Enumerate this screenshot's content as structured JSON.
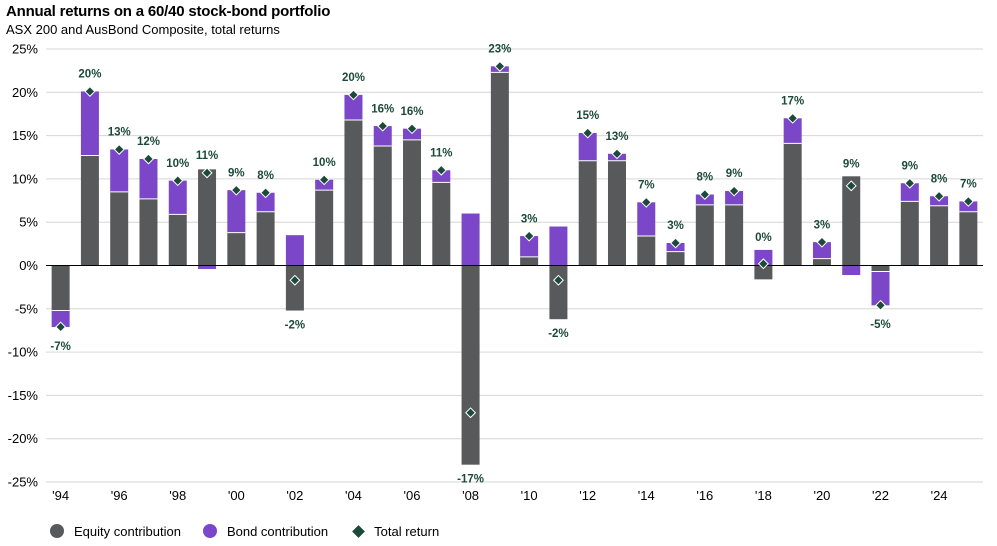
{
  "chart_data": {
    "type": "bar",
    "title": "Annual returns on a 60/40 stock-bond portfolio",
    "subtitle": "ASX 200 and AusBond Composite, total returns",
    "ylim": [
      -25,
      25
    ],
    "yticks": [
      25,
      20,
      15,
      10,
      5,
      0,
      -5,
      -10,
      -15,
      -20,
      -25
    ],
    "ytick_labels": [
      "25%",
      "20%",
      "15%",
      "10%",
      "5%",
      "0%",
      "-5%",
      "-10%",
      "-15%",
      "-20%",
      "-25%"
    ],
    "years": [
      1994,
      1995,
      1996,
      1997,
      1998,
      1999,
      2000,
      2001,
      2002,
      2003,
      2004,
      2005,
      2006,
      2007,
      2008,
      2009,
      2010,
      2011,
      2012,
      2013,
      2014,
      2015,
      2016,
      2017,
      2018,
      2019,
      2020,
      2021,
      2022,
      2023,
      2024,
      2025
    ],
    "xtick_labels": [
      "'94",
      "'96",
      "'98",
      "'00",
      "'02",
      "'04",
      "'06",
      "'08",
      "'10",
      "'12",
      "'14",
      "'16",
      "'18",
      "'20",
      "'22",
      "'24"
    ],
    "xtick_years": [
      1994,
      1996,
      1998,
      2000,
      2002,
      2004,
      2006,
      2008,
      2010,
      2012,
      2014,
      2016,
      2018,
      2020,
      2022,
      2024
    ],
    "series": [
      {
        "name": "Equity contribution",
        "color": "#58595b",
        "values": [
          -5.2,
          12.7,
          8.5,
          7.7,
          5.9,
          11.1,
          3.8,
          6.2,
          -5.2,
          8.7,
          16.8,
          13.8,
          14.5,
          9.6,
          -23.0,
          22.3,
          1.0,
          -6.2,
          12.1,
          12.1,
          3.4,
          1.6,
          7.0,
          7.0,
          -1.6,
          14.1,
          0.8,
          10.3,
          -0.7,
          7.4,
          6.9,
          6.2
        ]
      },
      {
        "name": "Bond contribution",
        "color": "#7b46c8",
        "values": [
          -1.9,
          7.4,
          4.9,
          4.6,
          3.9,
          -0.4,
          4.9,
          2.2,
          3.5,
          1.2,
          2.9,
          2.3,
          1.3,
          1.4,
          6.0,
          0.7,
          2.4,
          4.5,
          3.2,
          0.8,
          3.9,
          1.0,
          1.2,
          1.6,
          1.8,
          2.9,
          1.9,
          -1.1,
          -3.9,
          2.1,
          1.1,
          1.2
        ]
      },
      {
        "name": "Total return",
        "color": "#1c4a3a",
        "values": [
          -7.1,
          20.1,
          13.4,
          12.3,
          9.8,
          10.7,
          8.7,
          8.4,
          -1.7,
          9.9,
          19.7,
          16.1,
          15.8,
          11.0,
          -17.0,
          23.0,
          3.4,
          -1.7,
          15.3,
          12.9,
          7.3,
          2.6,
          8.2,
          8.6,
          0.2,
          17.0,
          2.7,
          9.2,
          -4.6,
          9.5,
          8.0,
          7.4
        ]
      }
    ],
    "data_labels": [
      "-7%",
      "20%",
      "13%",
      "12%",
      "10%",
      "11%",
      "9%",
      "8%",
      "-2%",
      "10%",
      "20%",
      "16%",
      "16%",
      "11%",
      "-17%",
      "23%",
      "3%",
      "-2%",
      "15%",
      "13%",
      "7%",
      "3%",
      "8%",
      "9%",
      "0%",
      "17%",
      "3%",
      "9%",
      "-5%",
      "9%",
      "8%",
      "7%"
    ],
    "grid": true,
    "legend_position": "bottom-left"
  },
  "legend": {
    "equity": "Equity contribution",
    "bond": "Bond contribution",
    "total": "Total return"
  }
}
